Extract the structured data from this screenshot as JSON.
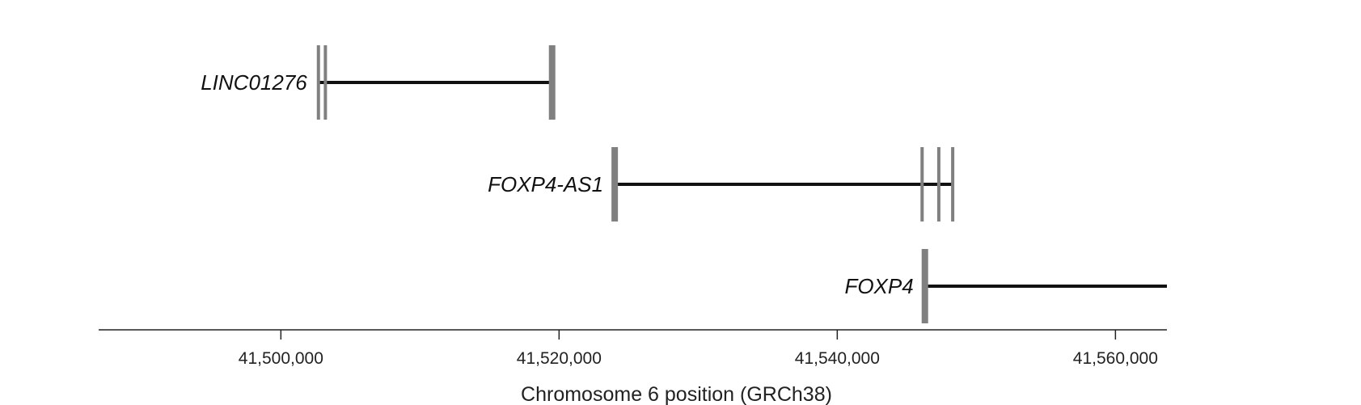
{
  "title": "",
  "colors": {
    "intron_line": "#111111",
    "exon": "#808080",
    "axis": "#222222"
  },
  "axis": {
    "label": "Chromosome 6 position (GRCh38)",
    "range": [
      41486900,
      41563700
    ],
    "ticks": [
      {
        "value": 41500000,
        "label": "41,500,000"
      },
      {
        "value": 41520000,
        "label": "41,520,000"
      },
      {
        "value": 41540000,
        "label": "41,540,000"
      },
      {
        "value": 41560000,
        "label": "41,560,000"
      }
    ]
  },
  "genes": [
    {
      "name": "LINC01276",
      "start": 41502700,
      "end": 41519500,
      "exons": [
        {
          "pos": 41502700,
          "thick": false
        },
        {
          "pos": 41503200,
          "thick": false
        },
        {
          "pos": 41519500,
          "thick": true
        }
      ]
    },
    {
      "name": "FOXP4-AS1",
      "start": 41524000,
      "end": 41548300,
      "exons": [
        {
          "pos": 41524000,
          "thick": true
        },
        {
          "pos": 41546100,
          "thick": false
        },
        {
          "pos": 41547300,
          "thick": false
        },
        {
          "pos": 41548300,
          "thick": false
        }
      ]
    },
    {
      "name": "FOXP4",
      "start": 41546300,
      "end": 41563700,
      "exons": [
        {
          "pos": 41546300,
          "thick": true
        }
      ]
    }
  ]
}
